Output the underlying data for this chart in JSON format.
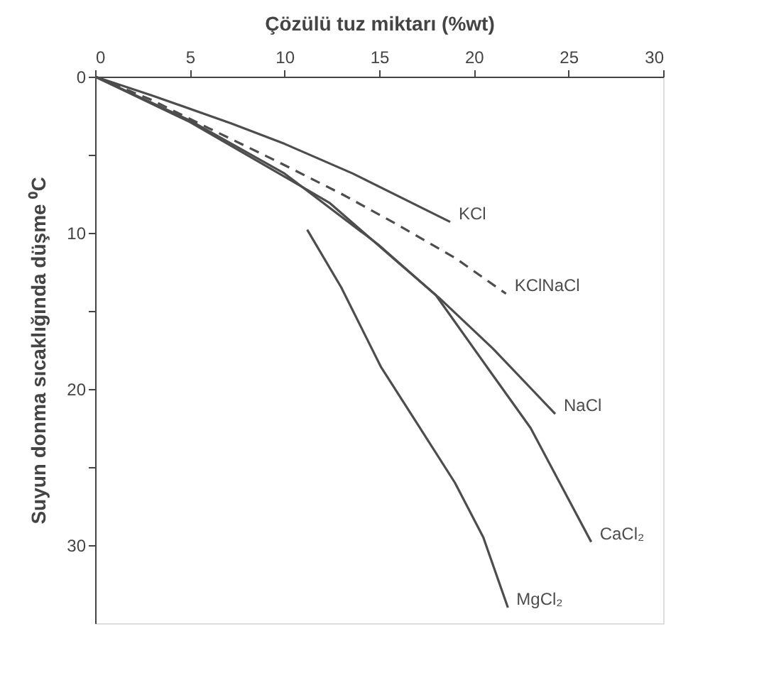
{
  "chart_data": {
    "type": "line",
    "xlabel": "Çözülü tuz miktarı (%wt)",
    "ylabel": "Suyun donma sıcaklığında düşme ⁰C",
    "xlim": [
      0,
      30
    ],
    "xticks": [
      0,
      5,
      10,
      15,
      20,
      25,
      30
    ],
    "ylim": [
      35,
      0
    ],
    "yticks": [
      0,
      {
        "value": 5,
        "label": null
      },
      10,
      {
        "value": 15,
        "label": null
      },
      20,
      {
        "value": 25,
        "label": null
      },
      30
    ],
    "grid": false,
    "legend": false,
    "marker": "none",
    "series": [
      {
        "name": "KCl",
        "color": "#4d4d4d",
        "line_style": "solid",
        "x": [
          0,
          3,
          7.2,
          10,
          13.6,
          18.75
        ],
        "values": [
          0,
          1.2,
          3.0,
          4.3,
          6.2,
          9.3
        ]
      },
      {
        "name": "KClNaCl",
        "color": "#4d4d4d",
        "line_style": "dashed",
        "x": [
          0,
          3,
          6,
          9.4,
          13,
          16,
          19,
          21.7
        ],
        "values": [
          0,
          1.5,
          3.3,
          5.3,
          7.5,
          9.5,
          11.6,
          13.9
        ]
      },
      {
        "name": "NaCl",
        "color": "#4d4d4d",
        "line_style": "solid",
        "x": [
          0,
          5,
          10,
          12.4,
          16,
          18.2,
          21,
          24.3
        ],
        "values": [
          0,
          2.9,
          6.4,
          8.1,
          11.9,
          14.2,
          17.4,
          21.6
        ]
      },
      {
        "name": "CaCl₂",
        "color": "#4d4d4d",
        "line_style": "solid",
        "x": [
          0,
          5,
          10,
          15,
          18,
          20.7,
          23,
          26.2
        ],
        "values": [
          0,
          2.8,
          6.2,
          10.8,
          14,
          18.6,
          22.5,
          29.8
        ]
      },
      {
        "name": "MgCl₂",
        "color": "#4d4d4d",
        "line_style": "solid",
        "x": [
          11.2,
          13,
          15.1,
          17,
          19,
          20.5,
          21.8
        ],
        "values": [
          9.8,
          13.5,
          18.6,
          22.2,
          26.0,
          29.5,
          34
        ]
      }
    ]
  }
}
